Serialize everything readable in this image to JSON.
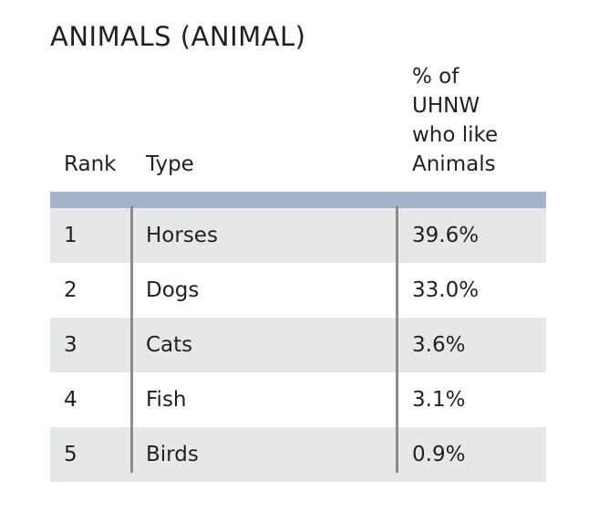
{
  "title": "ANIMALS (ANIMAL)",
  "headers": {
    "rank": "Rank",
    "type": "Type",
    "pct_lines": [
      "% of",
      "UHNW",
      "who like",
      "Animals"
    ]
  },
  "rows": [
    {
      "rank": "1",
      "type": "Horses",
      "pct": "39.6%"
    },
    {
      "rank": "2",
      "type": "Dogs",
      "pct": "33.0%"
    },
    {
      "rank": "3",
      "type": "Cats",
      "pct": "3.6%"
    },
    {
      "rank": "4",
      "type": "Fish",
      "pct": "3.1%"
    },
    {
      "rank": "5",
      "type": "Birds",
      "pct": "0.9%"
    }
  ],
  "colors": {
    "header_bar": "#a4b3ca",
    "shaded_row": "#e6e7e8",
    "divider": "#8a8c8e"
  }
}
